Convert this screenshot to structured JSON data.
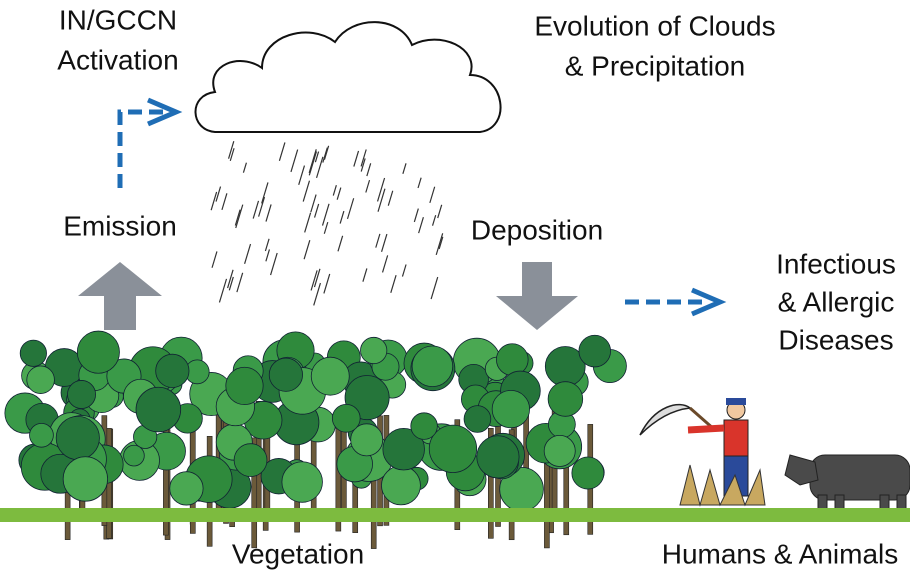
{
  "labels": {
    "activation": [
      "IN/GCCN",
      "Activation"
    ],
    "clouds": [
      "Evolution of Clouds",
      "& Precipitation"
    ],
    "emission": "Emission",
    "deposition": "Deposition",
    "diseases": [
      "Infectious",
      "& Allergic",
      "Diseases"
    ],
    "vegetation": "Vegetation",
    "humans": "Humans & Animals"
  }
}
